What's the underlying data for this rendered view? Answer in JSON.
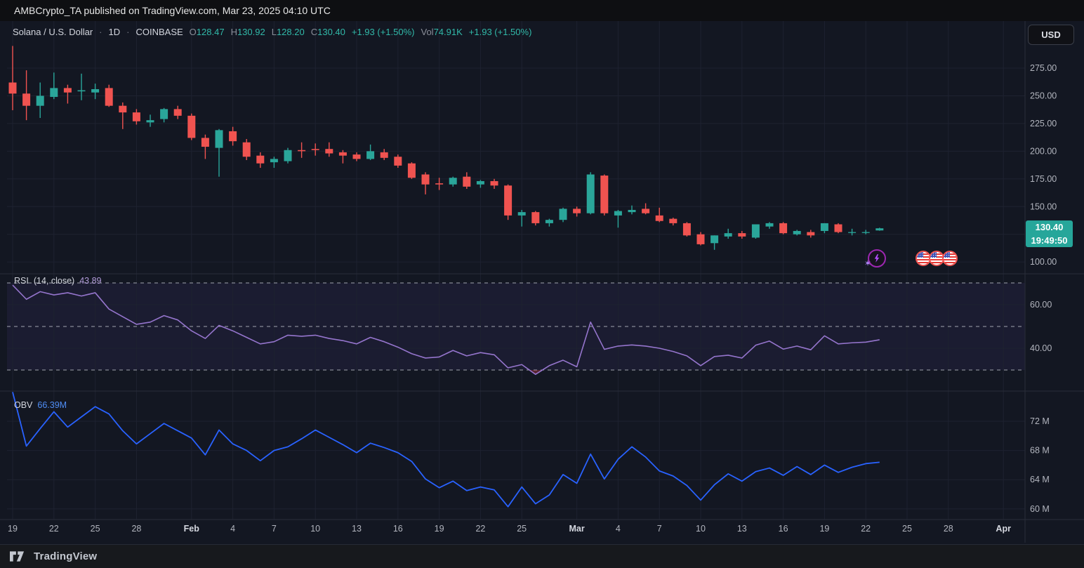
{
  "header": {
    "publish_text": "AMBCrypto_TA published on TradingView.com, Mar 23, 2025 04:10 UTC"
  },
  "legend": {
    "symbol": "Solana / U.S. Dollar",
    "sep": "·",
    "interval": "1D",
    "exchange": "COINBASE",
    "o_label": "O",
    "o": "128.47",
    "h_label": "H",
    "h": "130.92",
    "l_label": "L",
    "l": "128.20",
    "c_label": "C",
    "c": "130.40",
    "change": "+1.93 (+1.50%)",
    "vol_label": "Vol",
    "vol": "74.91K",
    "vol_change": "+1.93 (+1.50%)"
  },
  "rsi_legend": {
    "name": "RSI",
    "params": "(14, close)",
    "value": "43.89"
  },
  "obv_legend": {
    "name": "OBV",
    "value": "66.39M"
  },
  "price_scale": {
    "currency": "USD",
    "last_price": "130.40",
    "countdown": "19:49:50"
  },
  "footer": {
    "brand": "TradingView"
  },
  "colors": {
    "background": "#131722",
    "grid": "#1e2230",
    "separator": "#2a2e39",
    "up": "#2aa69a",
    "down": "#f05350",
    "rsi_line": "#9575cd",
    "rsi_band_fill": "rgba(136,94,255,0.07)",
    "rsi_band_line": "#a2a5af",
    "rsi_oversold_fill": "rgba(244,70,90,0.30)",
    "obv_line": "#2962ff",
    "axis_text": "#b2b5be",
    "axis_month_text": "#d5d8e0",
    "price_label_bg": "#26a69a"
  },
  "chart_data": [
    {
      "type": "candlestick",
      "name": "Solana / U.S. Dollar, 1D, COINBASE",
      "ylabel": "USD",
      "ylim": [
        95,
        297
      ],
      "grid_values": [
        275,
        250,
        225,
        200,
        175,
        150,
        125,
        100
      ],
      "y_ticks": [
        {
          "label": "275.00",
          "value": 275
        },
        {
          "label": "250.00",
          "value": 250
        },
        {
          "label": "225.00",
          "value": 225
        },
        {
          "label": "200.00",
          "value": 200
        },
        {
          "label": "175.00",
          "value": 175
        },
        {
          "label": "150.00",
          "value": 150
        },
        {
          "label": "100.00",
          "value": 100
        }
      ],
      "last_close": 130.4,
      "candles": [
        [
          262,
          295,
          237,
          252
        ],
        [
          252,
          273,
          228,
          241
        ],
        [
          241,
          262,
          230,
          250
        ],
        [
          249,
          271,
          247,
          257
        ],
        [
          257,
          260,
          243,
          253
        ],
        [
          254,
          270,
          246,
          255
        ],
        [
          253,
          261,
          247,
          256
        ],
        [
          257,
          260,
          240,
          241
        ],
        [
          241,
          244,
          220,
          235
        ],
        [
          235,
          238,
          224,
          227
        ],
        [
          226,
          233,
          222,
          228
        ],
        [
          229,
          239,
          226,
          238
        ],
        [
          238,
          241,
          229,
          232
        ],
        [
          232,
          234,
          210,
          212
        ],
        [
          212,
          215,
          193,
          204
        ],
        [
          203,
          220,
          177,
          219
        ],
        [
          218,
          222,
          205,
          209
        ],
        [
          208,
          211,
          192,
          195
        ],
        [
          196,
          199,
          185,
          189
        ],
        [
          190,
          195,
          185,
          193
        ],
        [
          191,
          203,
          189,
          201
        ],
        [
          201,
          208,
          194,
          200
        ],
        [
          202,
          207,
          196,
          201
        ],
        [
          202,
          208,
          195,
          198
        ],
        [
          199,
          201,
          189,
          196
        ],
        [
          197,
          199,
          191,
          193
        ],
        [
          193,
          206,
          192,
          200
        ],
        [
          199,
          202,
          192,
          194
        ],
        [
          195,
          197,
          185,
          187
        ],
        [
          189,
          190,
          175,
          176
        ],
        [
          179,
          181,
          161,
          170
        ],
        [
          171,
          176,
          165,
          170
        ],
        [
          170,
          177,
          168,
          176
        ],
        [
          177,
          181,
          166,
          168
        ],
        [
          170,
          174,
          167,
          173
        ],
        [
          173,
          175,
          166,
          169
        ],
        [
          169,
          170,
          138,
          142
        ],
        [
          142,
          147,
          132,
          145
        ],
        [
          145,
          146,
          133,
          135
        ],
        [
          135,
          139,
          132,
          138
        ],
        [
          138,
          149,
          136,
          148
        ],
        [
          148,
          150,
          141,
          144
        ],
        [
          144,
          181,
          143,
          179
        ],
        [
          178,
          179,
          142,
          144
        ],
        [
          142,
          147,
          131,
          146
        ],
        [
          145,
          151,
          143,
          147
        ],
        [
          148,
          153,
          143,
          144
        ],
        [
          142,
          149,
          136,
          137
        ],
        [
          139,
          140,
          133,
          135
        ],
        [
          135,
          136,
          123,
          124
        ],
        [
          125,
          127,
          115,
          116
        ],
        [
          117,
          124,
          111,
          124
        ],
        [
          123,
          130,
          121,
          126
        ],
        [
          126,
          128,
          121,
          123
        ],
        [
          122,
          134,
          121,
          134
        ],
        [
          132,
          136,
          130,
          135
        ],
        [
          135,
          136,
          125,
          126
        ],
        [
          125,
          129,
          124,
          128
        ],
        [
          127,
          129,
          122,
          124
        ],
        [
          128,
          135,
          126,
          135
        ],
        [
          134,
          135,
          126,
          127
        ],
        [
          127,
          130,
          124,
          127
        ],
        [
          127,
          129,
          125,
          127
        ],
        [
          128.47,
          130.92,
          128.2,
          130.4
        ]
      ],
      "x_ticks": [
        {
          "label": "19",
          "i": 0,
          "month": false
        },
        {
          "label": "22",
          "i": 3,
          "month": false
        },
        {
          "label": "25",
          "i": 6,
          "month": false
        },
        {
          "label": "28",
          "i": 9,
          "month": false
        },
        {
          "label": "Feb",
          "i": 13,
          "month": true
        },
        {
          "label": "4",
          "i": 16,
          "month": false
        },
        {
          "label": "7",
          "i": 19,
          "month": false
        },
        {
          "label": "10",
          "i": 22,
          "month": false
        },
        {
          "label": "13",
          "i": 25,
          "month": false
        },
        {
          "label": "16",
          "i": 28,
          "month": false
        },
        {
          "label": "19",
          "i": 31,
          "month": false
        },
        {
          "label": "22",
          "i": 34,
          "month": false
        },
        {
          "label": "25",
          "i": 37,
          "month": false
        },
        {
          "label": "Mar",
          "i": 41,
          "month": true
        },
        {
          "label": "4",
          "i": 44,
          "month": false
        },
        {
          "label": "7",
          "i": 47,
          "month": false
        },
        {
          "label": "10",
          "i": 50,
          "month": false
        },
        {
          "label": "13",
          "i": 53,
          "month": false
        },
        {
          "label": "16",
          "i": 56,
          "month": false
        },
        {
          "label": "19",
          "i": 59,
          "month": false
        },
        {
          "label": "22",
          "i": 62,
          "month": false
        },
        {
          "label": "25",
          "i": 65,
          "month": false
        },
        {
          "label": "28",
          "i": 68,
          "month": false
        },
        {
          "label": "Apr",
          "i": 72,
          "month": true
        }
      ]
    },
    {
      "type": "line",
      "name": "RSI (14, close)",
      "last_value": 43.89,
      "levels": {
        "upper": 70,
        "middle": 50,
        "lower": 30
      },
      "y_ticks": [
        {
          "label": "60.00",
          "value": 60
        },
        {
          "label": "40.00",
          "value": 40
        }
      ],
      "values": [
        69,
        62.5,
        66,
        64.5,
        65.5,
        64,
        65.5,
        58,
        54.5,
        51,
        52,
        55,
        53,
        48,
        44.5,
        50.5,
        48,
        45,
        42,
        43,
        46,
        45.5,
        46,
        44.5,
        43.5,
        42,
        45,
        43,
        40.5,
        37.5,
        35.5,
        36,
        39,
        36.5,
        38,
        37,
        31,
        32.5,
        28,
        32,
        34.5,
        31.5,
        52,
        39.5,
        41,
        41.5,
        41,
        40,
        38.5,
        36.5,
        32,
        36.2,
        36.8,
        35.5,
        41.4,
        43.3,
        39.6,
        41,
        39.3,
        45.7,
        42,
        42.5,
        42.8,
        43.89
      ]
    },
    {
      "type": "line",
      "name": "OBV",
      "last_value_label": "66.39M",
      "y_ticks": [
        {
          "label": "72 M",
          "value": 72
        },
        {
          "label": "68 M",
          "value": 68
        },
        {
          "label": "64 M",
          "value": 64
        },
        {
          "label": "60 M",
          "value": 60
        }
      ],
      "values_millions": [
        76,
        68.6,
        71,
        73.3,
        71.2,
        72.6,
        74,
        73,
        70.7,
        68.9,
        70.3,
        71.7,
        70.7,
        69.7,
        67.4,
        70.8,
        68.9,
        68,
        66.6,
        68,
        68.5,
        69.6,
        70.8,
        69.8,
        68.8,
        67.7,
        69,
        68.4,
        67.7,
        66.5,
        64.1,
        62.9,
        63.8,
        62.5,
        63,
        62.6,
        60.3,
        63,
        60.7,
        61.9,
        64.7,
        63.5,
        67.5,
        64.1,
        66.8,
        68.5,
        67.1,
        65.2,
        64.5,
        63.2,
        61.2,
        63.3,
        64.8,
        63.8,
        65.1,
        65.6,
        64.6,
        65.8,
        64.7,
        66,
        65,
        65.7,
        66.2,
        66.39
      ]
    }
  ],
  "event_markers": {
    "flash": {
      "x": 1249,
      "y": 368
    },
    "us_flags": [
      {
        "x": 1315
      },
      {
        "x": 1334
      },
      {
        "x": 1353
      }
    ],
    "flag_y": 368
  }
}
